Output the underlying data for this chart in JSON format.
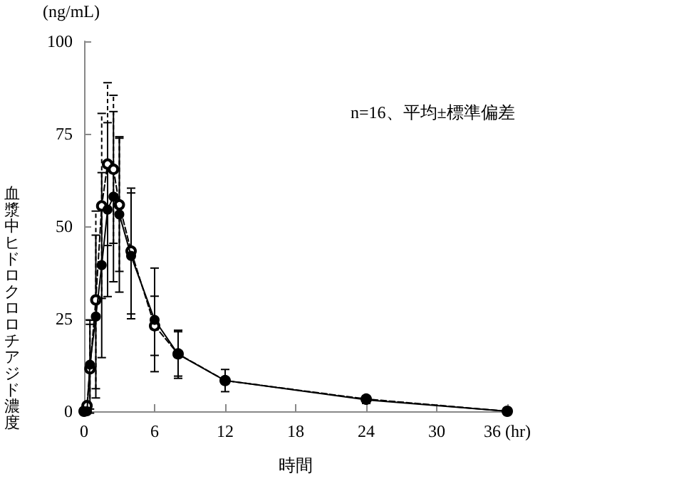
{
  "chart_data": {
    "type": "line",
    "xlabel": "時間",
    "ylabel": "血漿中ヒドロクロロチアジド濃度",
    "annotations": [
      "(ng/mL)",
      "n=16、平均±標準偏差"
    ],
    "x": [
      0,
      0.25,
      0.5,
      1,
      1.5,
      2,
      2.5,
      3,
      4,
      6,
      8,
      12,
      24,
      36
    ],
    "series": [
      {
        "color": "#000000",
        "marker": "circle",
        "line_style": "solid",
        "values": [
          0,
          0,
          12.6,
          25.6,
          39.5,
          54.5,
          58,
          53.2,
          42,
          24.7,
          15.4,
          8.3,
          3.1,
          0
        ],
        "errors": [
          null,
          null,
          12,
          22,
          25,
          23.5,
          23,
          21,
          17,
          14,
          6.5,
          3,
          1,
          0.5
        ]
      },
      {
        "color": "#000000",
        "marker": "circle",
        "line_style": "dashed",
        "values": [
          0,
          1.5,
          11.5,
          30.1,
          55.5,
          66.8,
          65.4,
          55.8,
          43.3,
          23.1,
          15.5,
          8.3,
          3.3,
          0
        ],
        "errors": [
          null,
          null,
          12,
          24,
          25,
          22,
          20,
          18,
          17,
          8,
          6,
          null,
          null,
          null
        ]
      }
    ],
    "xlim": [
      0,
      36
    ],
    "xticks": [
      0,
      6,
      12,
      18,
      24,
      30,
      {
        "value": 36,
        "label": "36 (hr)"
      }
    ],
    "ylim": [
      0,
      100
    ],
    "yticks": [
      0,
      25,
      50,
      75,
      100
    ],
    "grid": false
  }
}
